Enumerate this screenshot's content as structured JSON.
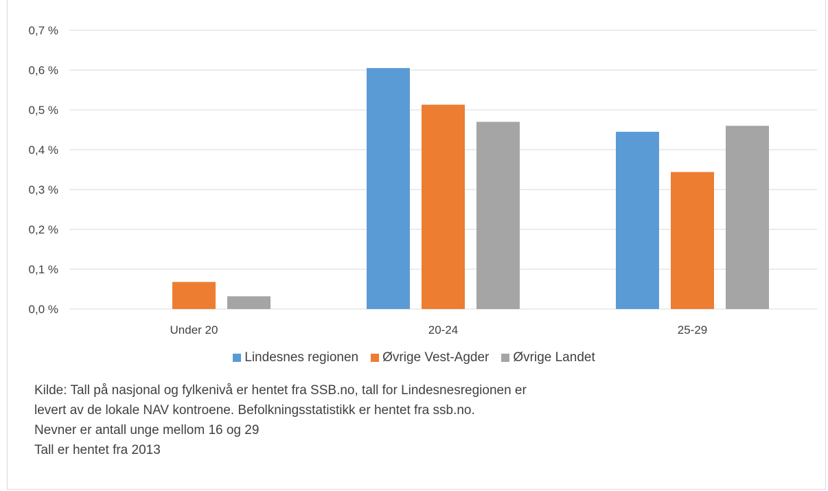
{
  "chart_data": {
    "type": "bar",
    "categories": [
      "Under 20",
      "20-24",
      "25-29"
    ],
    "series": [
      {
        "name": "Lindesnes regionen",
        "color": "#5b9bd5",
        "values": [
          0.0,
          0.605,
          0.445
        ]
      },
      {
        "name": "Øvrige Vest-Agder",
        "color": "#ed7d31",
        "values": [
          0.068,
          0.513,
          0.344
        ]
      },
      {
        "name": "Øvrige Landet",
        "color": "#a5a5a5",
        "values": [
          0.032,
          0.47,
          0.46
        ]
      }
    ],
    "y_ticks": [
      "0,0 %",
      "0,1 %",
      "0,2 %",
      "0,3 %",
      "0,4 %",
      "0,5 %",
      "0,6 %",
      "0,7 %"
    ],
    "ylim": [
      0,
      0.7
    ],
    "grid": true,
    "legend_position": "bottom",
    "title": "",
    "xlabel": "",
    "ylabel": ""
  },
  "notes": [
    "Kilde: Tall på nasjonal og fylkenivå er hentet fra SSB.no, tall for Lindesnesregionen er",
    "levert av de lokale NAV kontroene. Befolkningsstatistikk er hentet fra ssb.no.",
    "Nevner er antall unge mellom 16 og 29",
    "Tall er hentet fra 2013"
  ]
}
